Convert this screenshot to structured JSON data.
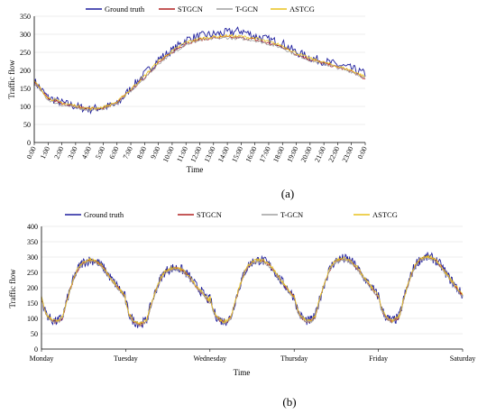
{
  "chart_data": [
    {
      "type": "line",
      "panel_label": "(a)",
      "xlabel": "Time",
      "ylabel": "Traffic flow",
      "ylim": [
        0,
        350
      ],
      "yticks": [
        0,
        50,
        100,
        150,
        200,
        250,
        300,
        350
      ],
      "x_ticks": [
        "0:00",
        "1:00",
        "2:00",
        "3:00",
        "4:00",
        "5:00",
        "6:00",
        "7:00",
        "8:00",
        "9:00",
        "10:00",
        "11:00",
        "12:00",
        "13:00",
        "14:00",
        "15:00",
        "16:00",
        "17:00",
        "18:00",
        "19:00",
        "20:00",
        "21:00",
        "22:00",
        "23:00",
        "0:00"
      ],
      "grid": "horizontal",
      "legend": "top",
      "x_hours": [
        0,
        1,
        2,
        3,
        4,
        5,
        6,
        7,
        8,
        9,
        10,
        11,
        12,
        13,
        14,
        15,
        16,
        17,
        18,
        19,
        20,
        21,
        22,
        23,
        24
      ],
      "series": [
        {
          "name": "Ground truth",
          "color": "#1f1f9e",
          "noise": 12,
          "values": [
            170,
            125,
            110,
            100,
            92,
            98,
            105,
            150,
            190,
            230,
            255,
            285,
            295,
            300,
            305,
            310,
            295,
            285,
            275,
            250,
            235,
            225,
            215,
            205,
            190
          ]
        },
        {
          "name": "STGCN",
          "color": "#b22222",
          "noise": 4,
          "values": [
            168,
            122,
            108,
            100,
            93,
            96,
            110,
            145,
            180,
            220,
            250,
            275,
            285,
            290,
            292,
            290,
            285,
            275,
            265,
            245,
            230,
            220,
            208,
            198,
            175
          ]
        },
        {
          "name": "T-GCN",
          "color": "#a0a0a0",
          "noise": 4,
          "values": [
            165,
            118,
            104,
            97,
            90,
            94,
            108,
            143,
            178,
            218,
            248,
            272,
            283,
            288,
            290,
            288,
            283,
            273,
            262,
            243,
            228,
            218,
            207,
            196,
            178
          ]
        },
        {
          "name": "ASTCG",
          "color": "#e8c21e",
          "noise": 4,
          "values": [
            170,
            124,
            110,
            102,
            94,
            98,
            112,
            148,
            185,
            225,
            253,
            278,
            288,
            293,
            296,
            294,
            289,
            279,
            268,
            248,
            233,
            222,
            211,
            200,
            182
          ]
        }
      ]
    },
    {
      "type": "line",
      "panel_label": "(b)",
      "xlabel": "Time",
      "ylabel": "Traffic flow",
      "ylim": [
        0,
        400
      ],
      "yticks": [
        0,
        50,
        100,
        150,
        200,
        250,
        300,
        350,
        400
      ],
      "x_ticks": [
        "Monday",
        "Tuesday",
        "Wednesday",
        "Thursday",
        "Friday",
        "Saturday"
      ],
      "grid": "horizontal",
      "legend": "top",
      "days": 5,
      "series": [
        {
          "name": "Ground truth",
          "color": "#1f1f9e",
          "noise": 16
        },
        {
          "name": "STGCN",
          "color": "#b22222",
          "noise": 5
        },
        {
          "name": "T-GCN",
          "color": "#a0a0a0",
          "noise": 5
        },
        {
          "name": "ASTCG",
          "color": "#e8c21e",
          "noise": 5
        }
      ],
      "daily_profile": [
        170,
        125,
        105,
        95,
        90,
        95,
        105,
        150,
        190,
        225,
        255,
        275,
        285,
        290,
        292,
        290,
        285,
        275,
        262,
        245,
        228,
        215,
        200,
        185,
        170
      ],
      "day_peaks": [
        290,
        265,
        290,
        295,
        300
      ]
    }
  ]
}
